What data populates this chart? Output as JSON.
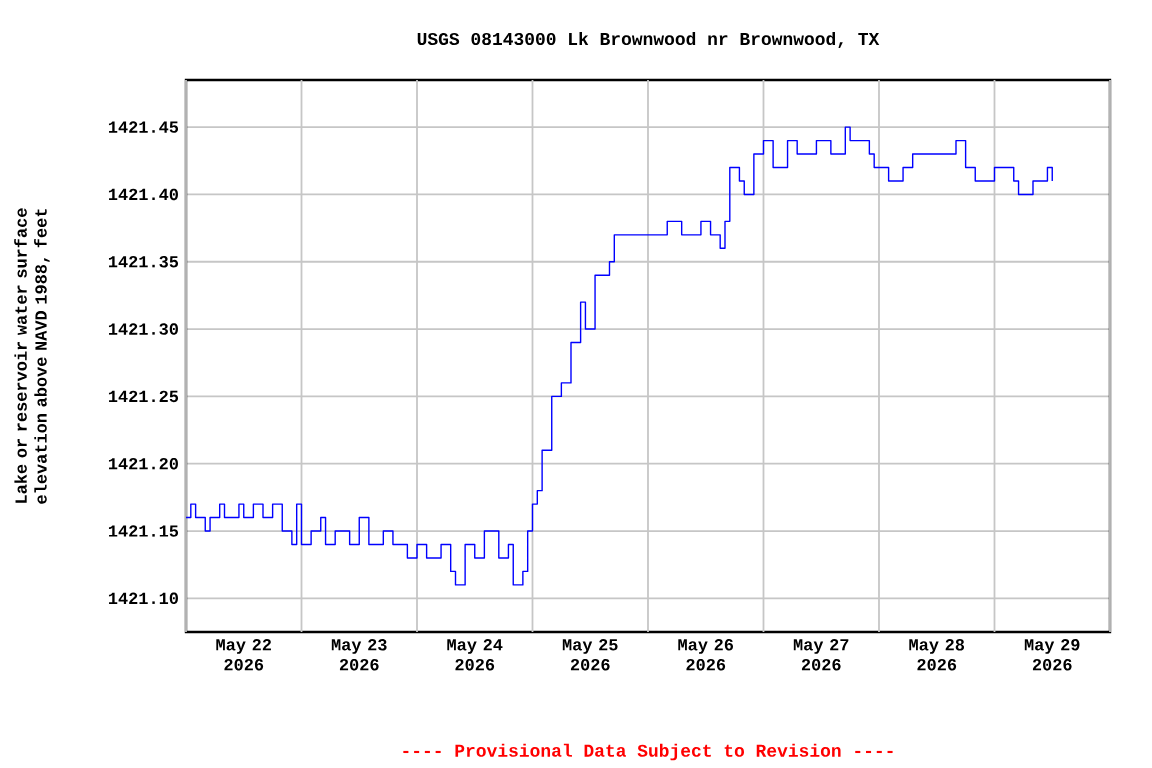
{
  "chart_data": {
    "type": "step",
    "title": "USGS 08143000 Lk Brownwood nr Brownwood, TX",
    "ylabel": "Lake or reservoir water surface elevation above NAVD 1988, feet",
    "annotations": [
      "---- Provisional Data Subject to Revision ----"
    ],
    "xlim": [
      "2026-05-22T00:00",
      "2026-05-30T00:00"
    ],
    "ylim": [
      1421.075,
      1421.485
    ],
    "xticks": [
      {
        "value": "2026-05-22T00:00",
        "label": null
      },
      {
        "value": "2026-05-22T12:00",
        "label": "May 22 2026"
      },
      {
        "value": "2026-05-23T00:00",
        "label": null
      },
      {
        "value": "2026-05-23T12:00",
        "label": "May 23 2026"
      },
      {
        "value": "2026-05-24T00:00",
        "label": null
      },
      {
        "value": "2026-05-24T12:00",
        "label": "May 24 2026"
      },
      {
        "value": "2026-05-25T00:00",
        "label": null
      },
      {
        "value": "2026-05-25T12:00",
        "label": "May 25 2026"
      },
      {
        "value": "2026-05-26T00:00",
        "label": null
      },
      {
        "value": "2026-05-26T12:00",
        "label": "May 26 2026"
      },
      {
        "value": "2026-05-27T00:00",
        "label": null
      },
      {
        "value": "2026-05-27T12:00",
        "label": "May 27 2026"
      },
      {
        "value": "2026-05-28T00:00",
        "label": null
      },
      {
        "value": "2026-05-28T12:00",
        "label": "May 28 2026"
      },
      {
        "value": "2026-05-29T00:00",
        "label": null
      },
      {
        "value": "2026-05-29T12:00",
        "label": "May 29 2026"
      },
      {
        "value": "2026-05-30T00:00",
        "label": null
      }
    ],
    "yticks": [
      {
        "value": 1421.1,
        "label": "1421.10"
      },
      1421.15,
      {
        "value": 1421.2,
        "label": "1421.20"
      },
      1421.25,
      {
        "value": 1421.3,
        "label": "1421.30"
      },
      1421.35,
      {
        "value": 1421.4,
        "label": "1421.40"
      },
      1421.45
    ],
    "grid": true,
    "series": [
      {
        "color": "#0000ff",
        "x": [
          "2026-05-22T00:00",
          "2026-05-22T01:00",
          "2026-05-22T02:00",
          "2026-05-22T04:00",
          "2026-05-22T05:00",
          "2026-05-22T07:00",
          "2026-05-22T08:00",
          "2026-05-22T11:00",
          "2026-05-22T12:00",
          "2026-05-22T14:00",
          "2026-05-22T16:00",
          "2026-05-22T18:00",
          "2026-05-22T20:00",
          "2026-05-22T22:00",
          "2026-05-22T23:00",
          "2026-05-23T00:00",
          "2026-05-23T02:00",
          "2026-05-23T04:00",
          "2026-05-23T05:00",
          "2026-05-23T07:00",
          "2026-05-23T10:00",
          "2026-05-23T12:00",
          "2026-05-23T14:00",
          "2026-05-23T17:00",
          "2026-05-23T19:00",
          "2026-05-23T22:00",
          "2026-05-24T00:00",
          "2026-05-24T02:00",
          "2026-05-24T05:00",
          "2026-05-24T07:00",
          "2026-05-24T08:00",
          "2026-05-24T10:00",
          "2026-05-24T12:00",
          "2026-05-24T14:00",
          "2026-05-24T17:00",
          "2026-05-24T19:00",
          "2026-05-24T20:00",
          "2026-05-24T22:00",
          "2026-05-24T23:00",
          "2026-05-25T00:00",
          "2026-05-25T01:00",
          "2026-05-25T02:00",
          "2026-05-25T04:00",
          "2026-05-25T06:00",
          "2026-05-25T08:00",
          "2026-05-25T10:00",
          "2026-05-25T11:00",
          "2026-05-25T13:00",
          "2026-05-25T16:00",
          "2026-05-25T17:00",
          "2026-05-25T20:00",
          "2026-05-26T00:00",
          "2026-05-26T04:00",
          "2026-05-26T07:00",
          "2026-05-26T11:00",
          "2026-05-26T13:00",
          "2026-05-26T15:00",
          "2026-05-26T16:00",
          "2026-05-26T17:00",
          "2026-05-26T19:00",
          "2026-05-26T20:00",
          "2026-05-26T22:00",
          "2026-05-27T00:00",
          "2026-05-27T02:00",
          "2026-05-27T05:00",
          "2026-05-27T07:00",
          "2026-05-27T11:00",
          "2026-05-27T14:00",
          "2026-05-27T17:00",
          "2026-05-27T18:00",
          "2026-05-27T22:00",
          "2026-05-27T23:00",
          "2026-05-28T02:00",
          "2026-05-28T05:00",
          "2026-05-28T07:00",
          "2026-05-28T12:00",
          "2026-05-28T16:00",
          "2026-05-28T18:00",
          "2026-05-28T20:00",
          "2026-05-29T00:00",
          "2026-05-29T04:00",
          "2026-05-29T05:00",
          "2026-05-29T08:00",
          "2026-05-29T11:00",
          "2026-05-29T12:00"
        ],
        "values": [
          1421.16,
          1421.17,
          1421.16,
          1421.15,
          1421.16,
          1421.17,
          1421.16,
          1421.17,
          1421.16,
          1421.17,
          1421.16,
          1421.17,
          1421.15,
          1421.14,
          1421.17,
          1421.14,
          1421.15,
          1421.16,
          1421.14,
          1421.15,
          1421.14,
          1421.16,
          1421.14,
          1421.15,
          1421.14,
          1421.13,
          1421.14,
          1421.13,
          1421.14,
          1421.12,
          1421.11,
          1421.14,
          1421.13,
          1421.15,
          1421.13,
          1421.14,
          1421.11,
          1421.12,
          1421.15,
          1421.17,
          1421.18,
          1421.21,
          1421.25,
          1421.26,
          1421.29,
          1421.32,
          1421.3,
          1421.34,
          1421.35,
          1421.37,
          1421.37,
          1421.37,
          1421.38,
          1421.37,
          1421.38,
          1421.37,
          1421.36,
          1421.38,
          1421.42,
          1421.41,
          1421.4,
          1421.43,
          1421.44,
          1421.42,
          1421.44,
          1421.43,
          1421.44,
          1421.43,
          1421.45,
          1421.44,
          1421.43,
          1421.42,
          1421.41,
          1421.42,
          1421.43,
          1421.43,
          1421.44,
          1421.42,
          1421.41,
          1421.42,
          1421.41,
          1421.4,
          1421.41,
          1421.42,
          1421.41
        ]
      }
    ]
  }
}
